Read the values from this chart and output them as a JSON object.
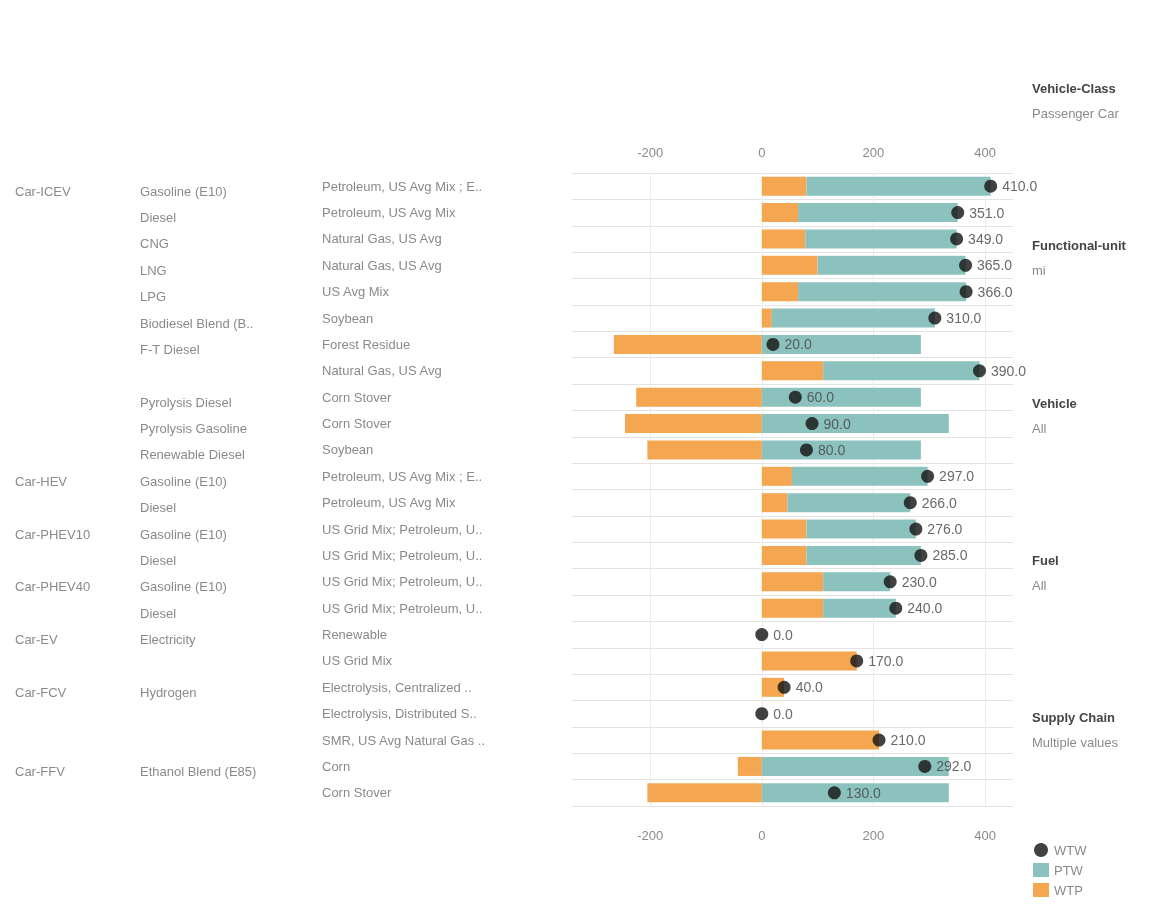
{
  "chart_data": {
    "type": "bar",
    "orientation": "horizontal",
    "stacked": true,
    "categories": [
      "Petroleum, US Avg Mix ; E..",
      "Petroleum, US Avg Mix",
      "Natural Gas, US Avg",
      "Natural Gas, US Avg",
      "US Avg Mix",
      "Soybean",
      "Forest Residue",
      "Natural Gas, US Avg",
      "Corn Stover",
      "Corn Stover",
      "Soybean",
      "Petroleum, US Avg Mix ; E..",
      "Petroleum, US Avg Mix",
      "US Grid Mix; Petroleum, U..",
      "US Grid Mix; Petroleum, U..",
      "US Grid Mix; Petroleum, U..",
      "US Grid Mix; Petroleum, U..",
      "Renewable",
      "US Grid Mix",
      "Electrolysis, Centralized ..",
      "Electrolysis, Distributed S..",
      "SMR, US Avg Natural Gas ..",
      "Corn",
      "Corn Stover"
    ],
    "series": [
      {
        "name": "WTP",
        "color": "#f4a650",
        "values": [
          80,
          65,
          78,
          100,
          65,
          18,
          -265,
          110,
          -225,
          -245,
          -205,
          54,
          46,
          80,
          80,
          110,
          110,
          0,
          170,
          40,
          0,
          210,
          -43,
          -205
        ]
      },
      {
        "name": "PTW",
        "color": "#8cc2be",
        "values": [
          330,
          286,
          271,
          265,
          301,
          292,
          285,
          280,
          285,
          335,
          285,
          243,
          220,
          196,
          205,
          120,
          130,
          0,
          0,
          0,
          0,
          0,
          335,
          335
        ]
      },
      {
        "name": "WTW",
        "type": "scatter",
        "color": "#111111",
        "values": [
          410,
          351,
          349,
          365,
          366,
          310,
          20,
          390,
          60,
          90,
          80,
          297,
          266,
          276,
          285,
          230,
          240,
          0,
          170,
          40,
          0,
          210,
          292,
          130
        ],
        "value_labels": [
          "410.0",
          "351.0",
          "349.0",
          "365.0",
          "366.0",
          "310.0",
          "20.0",
          "390.0",
          "60.0",
          "90.0",
          "80.0",
          "297.0",
          "266.0",
          "276.0",
          "285.0",
          "230.0",
          "240.0",
          "0.0",
          "170.0",
          "40.0",
          "0.0",
          "210.0",
          "292.0",
          "130.0"
        ]
      }
    ],
    "xlim": [
      -340,
      450
    ],
    "xticks": [
      -200,
      0,
      200,
      400
    ],
    "x2lim": [
      -340,
      450
    ],
    "x2ticks": [
      -200,
      0,
      200,
      400
    ],
    "grid": true,
    "legend": "bottom right",
    "marker": "circle",
    "annotations": [
      "Car-ICEV",
      "Gasoline (E10)",
      "Diesel",
      "CNG",
      "LNG",
      "LPG",
      "Biodiesel Blend (B..",
      "F-T Diesel",
      "Pyrolysis Diesel",
      "Pyrolysis Gasoline",
      "Renewable Diesel",
      "Car-HEV",
      "Gasoline (E10)",
      "Diesel",
      "Car-PHEV10",
      "Gasoline (E10)",
      "Diesel",
      "Car-PHEV40",
      "Gasoline (E10)",
      "Diesel",
      "Car-EV",
      "Electricity",
      "Car-FCV",
      "Hydrogen",
      "Car-FFV",
      "Ethanol Blend (E85)",
      "Vehicle-Class",
      "Passenger Car",
      "Functional-unit",
      "mi",
      "Vehicle",
      "All",
      "Fuel",
      "All",
      "Supply Chain",
      "Multiple values"
    ]
  }
}
